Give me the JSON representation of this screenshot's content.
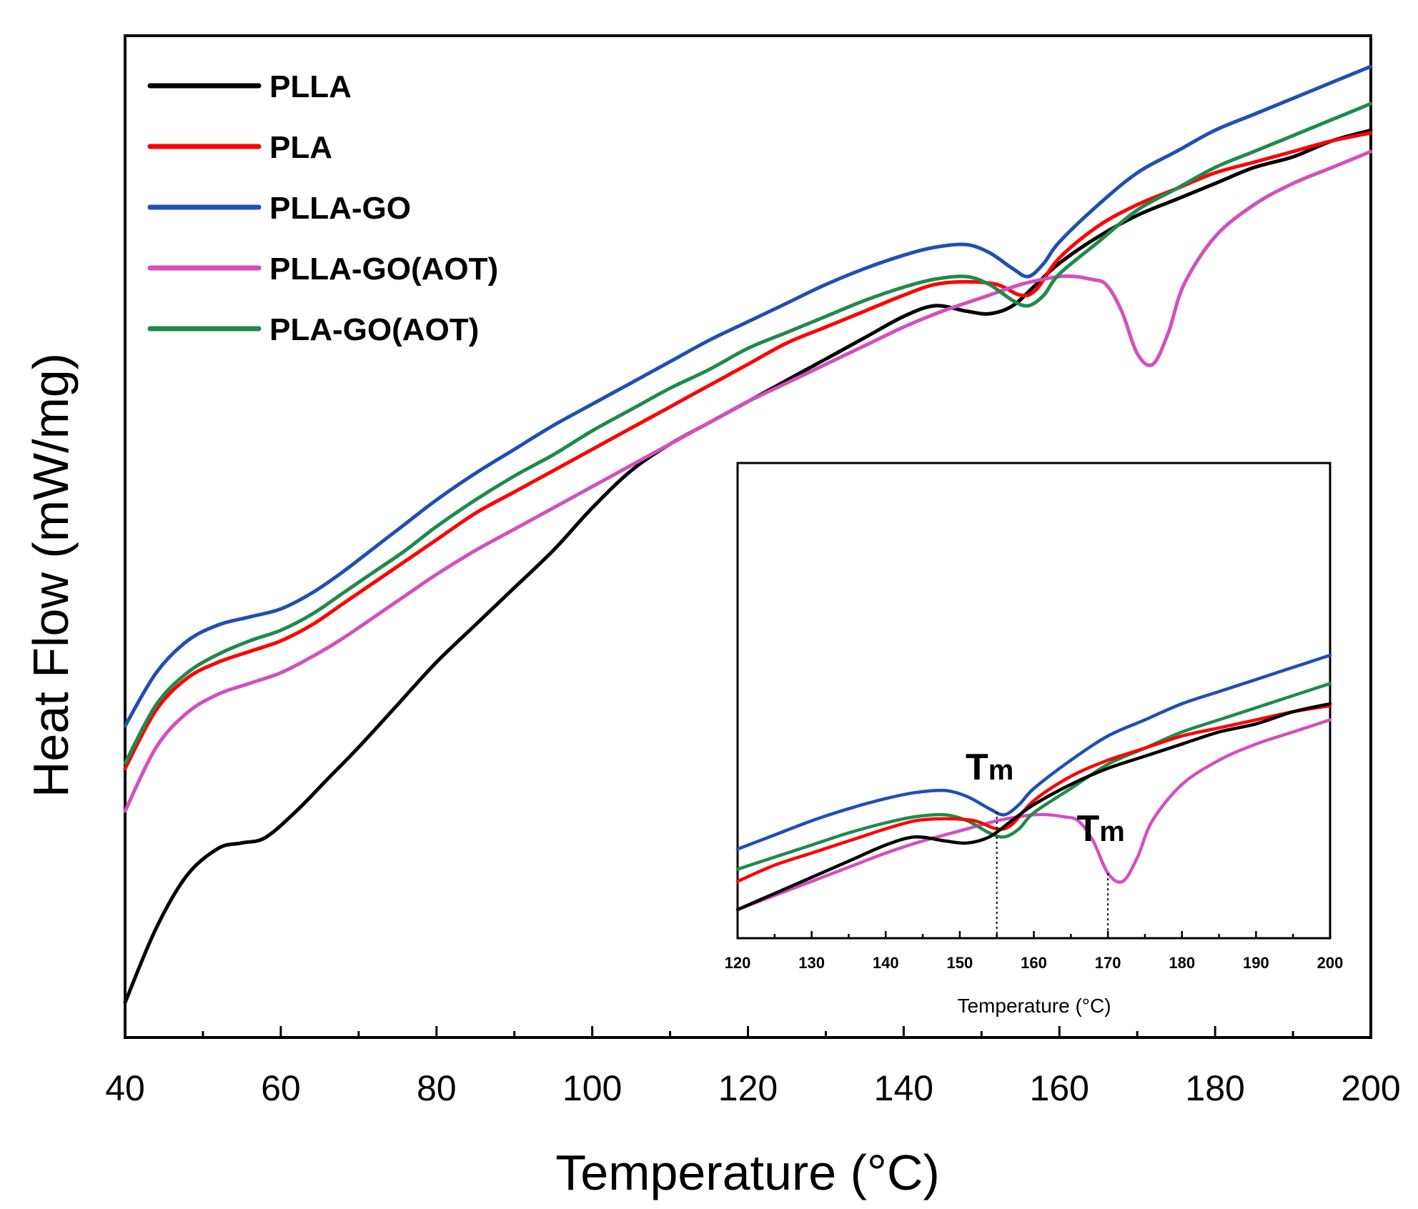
{
  "chart_data": [
    {
      "type": "line",
      "title": "",
      "xlabel": "Temperature (°C)",
      "ylabel": "Heat Flow (mW/mg)",
      "xlim": [
        40,
        200
      ],
      "xticks": [
        40,
        60,
        80,
        100,
        120,
        140,
        160,
        180,
        200
      ],
      "yticks_shown": false,
      "legend_position": "top-left",
      "series": [
        {
          "name": "PLLA",
          "color": "#000000",
          "x": [
            40,
            44,
            48,
            52,
            55,
            58,
            62,
            66,
            70,
            75,
            80,
            85,
            90,
            95,
            100,
            105,
            110,
            115,
            120,
            125,
            130,
            135,
            140,
            144,
            148,
            151,
            154,
            157,
            160,
            165,
            170,
            175,
            180,
            185,
            190,
            195,
            200
          ],
          "y": [
            0.0,
            0.14,
            0.24,
            0.29,
            0.3,
            0.31,
            0.36,
            0.42,
            0.48,
            0.56,
            0.64,
            0.71,
            0.78,
            0.85,
            0.93,
            1.0,
            1.05,
            1.09,
            1.13,
            1.17,
            1.21,
            1.25,
            1.29,
            1.31,
            1.3,
            1.295,
            1.31,
            1.35,
            1.39,
            1.44,
            1.48,
            1.51,
            1.54,
            1.57,
            1.59,
            1.62,
            1.64
          ]
        },
        {
          "name": "PLA",
          "color": "#ff0000",
          "x": [
            40,
            44,
            48,
            52,
            56,
            60,
            64,
            68,
            72,
            76,
            80,
            85,
            90,
            95,
            100,
            105,
            110,
            115,
            120,
            125,
            130,
            135,
            140,
            144,
            148,
            152,
            155,
            157,
            160,
            165,
            170,
            175,
            180,
            185,
            190,
            195,
            200
          ],
          "y": [
            0.44,
            0.55,
            0.61,
            0.64,
            0.66,
            0.68,
            0.71,
            0.75,
            0.79,
            0.83,
            0.87,
            0.92,
            0.96,
            1.0,
            1.04,
            1.08,
            1.12,
            1.16,
            1.2,
            1.24,
            1.27,
            1.3,
            1.33,
            1.35,
            1.355,
            1.35,
            1.33,
            1.34,
            1.4,
            1.46,
            1.5,
            1.53,
            1.56,
            1.58,
            1.6,
            1.62,
            1.635
          ]
        },
        {
          "name": "PLLA-GO",
          "color": "#1f4fb5",
          "x": [
            40,
            44,
            48,
            52,
            56,
            60,
            64,
            68,
            72,
            76,
            80,
            85,
            90,
            95,
            100,
            105,
            110,
            115,
            120,
            125,
            130,
            135,
            140,
            144,
            148,
            151,
            154,
            156,
            158,
            160,
            165,
            170,
            175,
            180,
            185,
            190,
            195,
            200
          ],
          "y": [
            0.52,
            0.62,
            0.68,
            0.71,
            0.725,
            0.74,
            0.77,
            0.81,
            0.855,
            0.9,
            0.945,
            0.995,
            1.04,
            1.085,
            1.125,
            1.165,
            1.205,
            1.245,
            1.28,
            1.315,
            1.35,
            1.38,
            1.405,
            1.42,
            1.425,
            1.41,
            1.38,
            1.365,
            1.39,
            1.43,
            1.5,
            1.56,
            1.6,
            1.64,
            1.67,
            1.7,
            1.73,
            1.76
          ]
        },
        {
          "name": "PLLA-GO(AOT)",
          "color": "#d34fbf",
          "x": [
            40,
            44,
            48,
            52,
            56,
            60,
            64,
            68,
            72,
            76,
            80,
            85,
            90,
            95,
            100,
            105,
            110,
            115,
            120,
            125,
            130,
            135,
            140,
            145,
            150,
            155,
            158,
            160,
            162,
            164,
            166,
            168,
            170,
            172,
            174,
            176,
            180,
            185,
            190,
            195,
            200
          ],
          "y": [
            0.36,
            0.48,
            0.545,
            0.58,
            0.6,
            0.62,
            0.65,
            0.685,
            0.725,
            0.765,
            0.805,
            0.85,
            0.89,
            0.93,
            0.97,
            1.01,
            1.05,
            1.09,
            1.13,
            1.165,
            1.2,
            1.235,
            1.27,
            1.3,
            1.325,
            1.35,
            1.36,
            1.365,
            1.365,
            1.36,
            1.35,
            1.3,
            1.22,
            1.2,
            1.26,
            1.35,
            1.44,
            1.5,
            1.54,
            1.57,
            1.6
          ]
        },
        {
          "name": "PLA-GO(AOT)",
          "color": "#1f8a4c",
          "x": [
            40,
            44,
            48,
            52,
            56,
            60,
            64,
            68,
            72,
            76,
            80,
            85,
            90,
            95,
            100,
            105,
            110,
            115,
            120,
            125,
            130,
            135,
            140,
            144,
            148,
            151,
            154,
            156,
            158,
            160,
            165,
            170,
            175,
            180,
            185,
            190,
            195,
            200
          ],
          "y": [
            0.45,
            0.56,
            0.62,
            0.655,
            0.68,
            0.7,
            0.73,
            0.77,
            0.81,
            0.85,
            0.895,
            0.945,
            0.99,
            1.03,
            1.075,
            1.115,
            1.155,
            1.19,
            1.23,
            1.26,
            1.29,
            1.32,
            1.345,
            1.36,
            1.365,
            1.35,
            1.32,
            1.31,
            1.33,
            1.37,
            1.43,
            1.49,
            1.53,
            1.57,
            1.6,
            1.63,
            1.66,
            1.69
          ]
        }
      ]
    },
    {
      "type": "line",
      "title": "",
      "xlabel": "Temperature (°C)",
      "ylabel": "",
      "xlim": [
        120,
        200
      ],
      "xticks": [
        120,
        130,
        140,
        150,
        160,
        170,
        180,
        190,
        200
      ],
      "yticks_shown": false,
      "annotations": [
        {
          "label": "T",
          "sub": "m",
          "x": 155,
          "series": "PLLA-GO"
        },
        {
          "label": "T",
          "sub": "m",
          "x": 170,
          "series": "PLLA-GO(AOT)"
        }
      ],
      "series_ref": [
        "PLLA",
        "PLA",
        "PLLA-GO",
        "PLLA-GO(AOT)",
        "PLA-GO(AOT)"
      ]
    }
  ]
}
